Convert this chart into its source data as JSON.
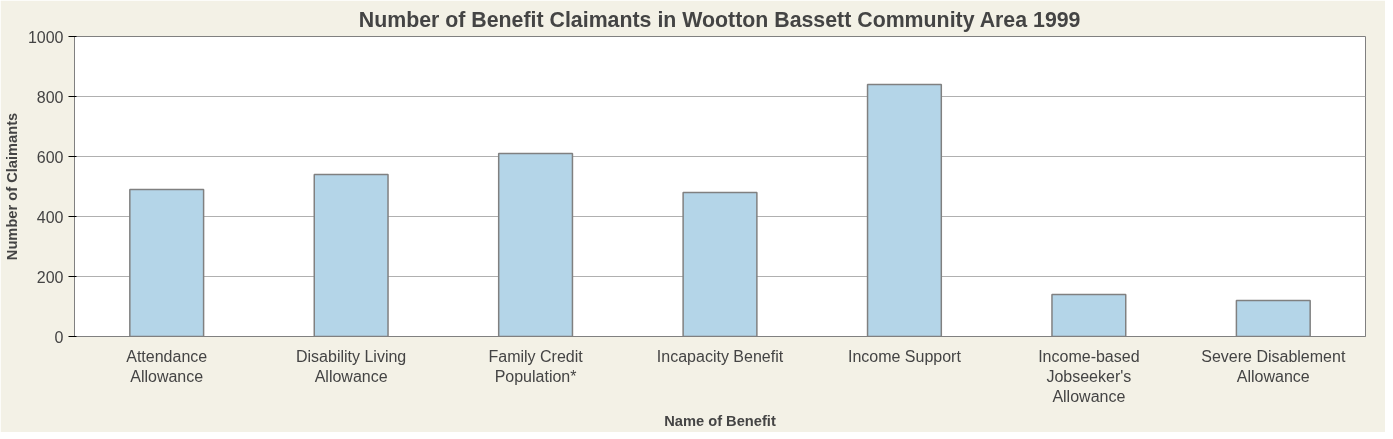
{
  "chart_data": {
    "type": "bar",
    "title": "Number of Benefit Claimants in Wootton Bassett Community Area 1999",
    "xlabel": "Name of Benefit",
    "ylabel": "Number of Claimants",
    "categories": [
      "Attendance Allowance",
      "Disability Living Allowance",
      "Family Credit Population*",
      "Incapacity Benefit",
      "Income Support",
      "Income-based Jobseeker's Allowance",
      "Severe Disablement Allowance"
    ],
    "values": [
      490,
      540,
      610,
      480,
      840,
      140,
      120
    ],
    "color": "#b4d5e8",
    "ylim": [
      0,
      1000
    ],
    "yticks": [
      0,
      200,
      400,
      600,
      800,
      1000
    ],
    "grid": "y"
  }
}
